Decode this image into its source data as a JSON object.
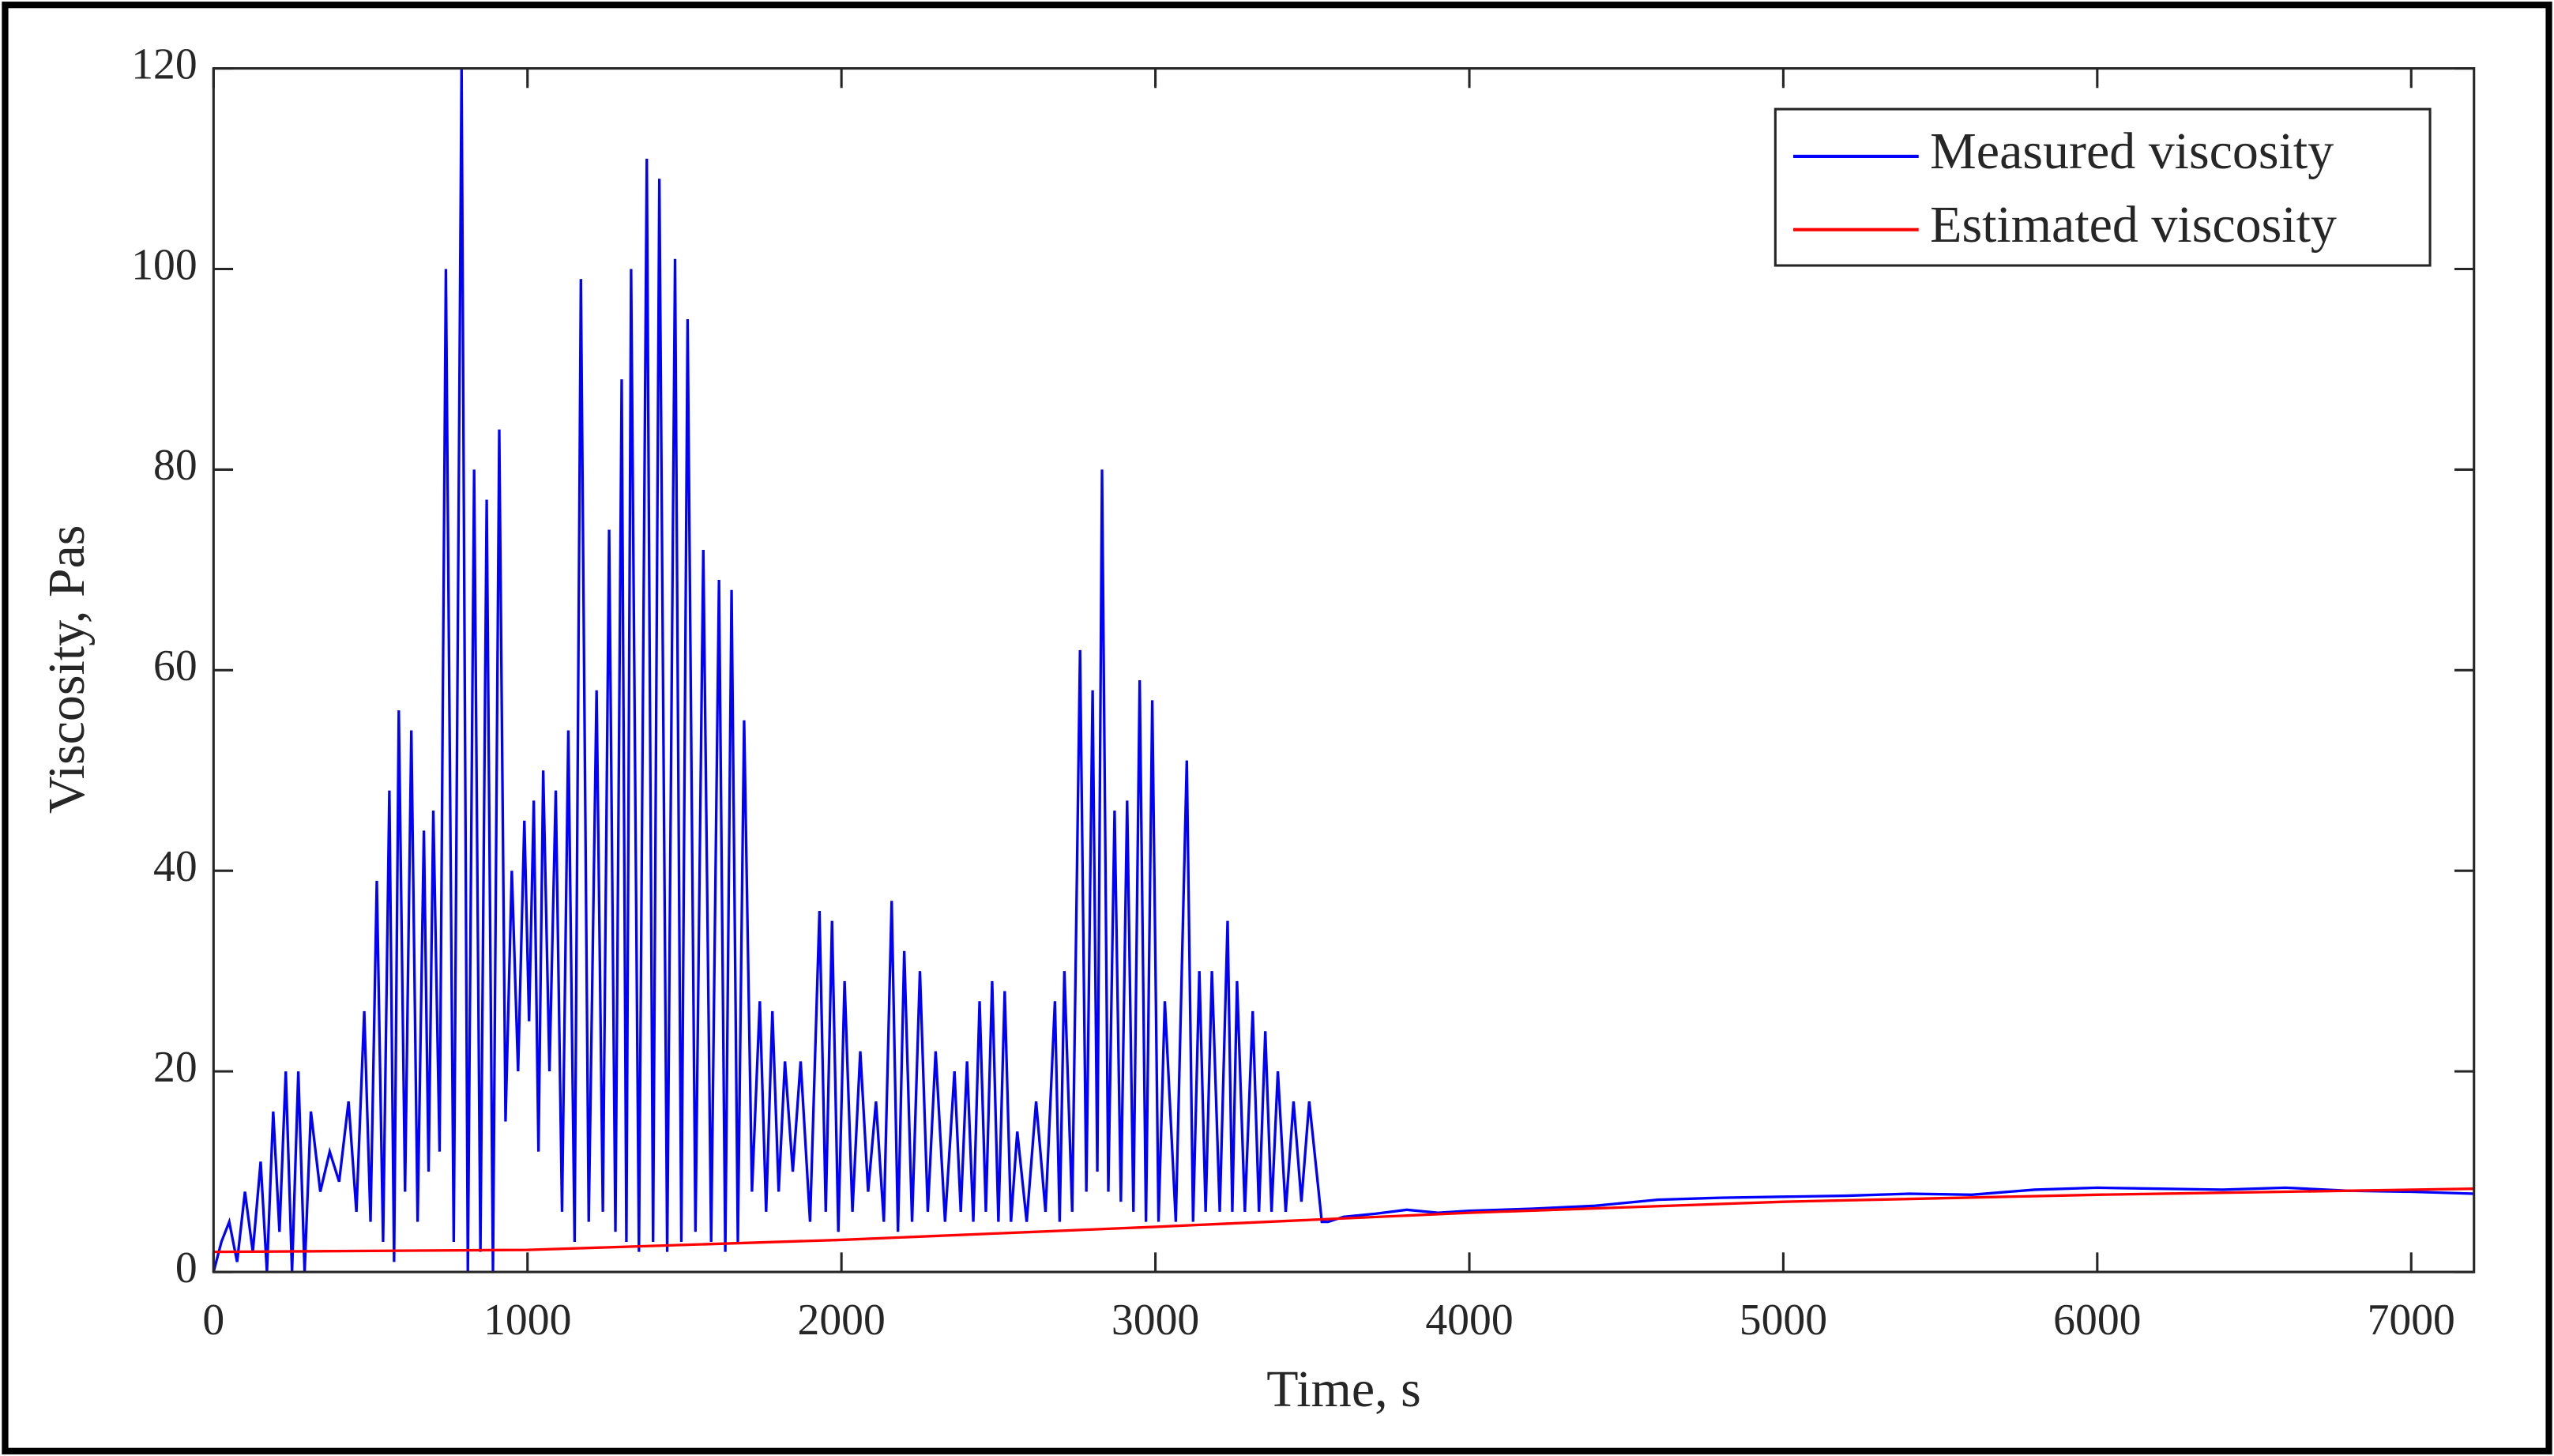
{
  "chart_data": {
    "type": "line",
    "xlabel": "Time, s",
    "ylabel": "Viscosity, Pas",
    "xlim": [
      0,
      7200
    ],
    "xticks": [
      0,
      1000,
      2000,
      3000,
      4000,
      5000,
      6000,
      7000
    ],
    "ylim": [
      0,
      120
    ],
    "yticks": [
      0,
      20,
      40,
      60,
      80,
      100,
      120
    ],
    "legend": "upper right",
    "series": [
      {
        "name": "Measured viscosity",
        "color": "#0000ff",
        "x": [
          0,
          25,
          50,
          75,
          100,
          125,
          150,
          170,
          190,
          210,
          230,
          250,
          270,
          290,
          310,
          340,
          370,
          400,
          430,
          455,
          480,
          500,
          520,
          540,
          560,
          575,
          590,
          610,
          630,
          650,
          670,
          685,
          700,
          720,
          740,
          765,
          790,
          810,
          830,
          850,
          870,
          890,
          910,
          930,
          950,
          970,
          990,
          1005,
          1020,
          1035,
          1050,
          1070,
          1090,
          1110,
          1130,
          1150,
          1170,
          1195,
          1220,
          1240,
          1260,
          1280,
          1300,
          1315,
          1330,
          1355,
          1380,
          1400,
          1420,
          1445,
          1470,
          1490,
          1510,
          1535,
          1560,
          1585,
          1610,
          1630,
          1650,
          1670,
          1690,
          1715,
          1740,
          1760,
          1780,
          1800,
          1820,
          1845,
          1870,
          1900,
          1930,
          1950,
          1970,
          1990,
          2010,
          2035,
          2060,
          2085,
          2110,
          2135,
          2160,
          2180,
          2200,
          2225,
          2250,
          2275,
          2300,
          2330,
          2360,
          2380,
          2400,
          2420,
          2440,
          2460,
          2480,
          2500,
          2520,
          2540,
          2560,
          2590,
          2620,
          2650,
          2680,
          2695,
          2710,
          2735,
          2760,
          2780,
          2800,
          2815,
          2830,
          2850,
          2870,
          2890,
          2910,
          2930,
          2950,
          2970,
          2990,
          3010,
          3030,
          3065,
          3100,
          3120,
          3140,
          3160,
          3180,
          3205,
          3230,
          3245,
          3260,
          3285,
          3310,
          3330,
          3350,
          3370,
          3390,
          3415,
          3440,
          3465,
          3490,
          3530,
          3550,
          3600,
          3700,
          3800,
          3900,
          4000,
          4200,
          4400,
          4600,
          4800,
          5000,
          5200,
          5400,
          5600,
          5800,
          6000,
          6200,
          6400,
          6600,
          6800,
          7000,
          7200
        ],
        "values": [
          0,
          3,
          5,
          1,
          8,
          2,
          11,
          0,
          16,
          4,
          20,
          0,
          20,
          0,
          16,
          8,
          12,
          9,
          17,
          6,
          26,
          5,
          39,
          3,
          48,
          1,
          56,
          8,
          54,
          5,
          44,
          10,
          46,
          12,
          100,
          3,
          120,
          0,
          80,
          2,
          77,
          0,
          84,
          15,
          40,
          20,
          45,
          25,
          47,
          12,
          50,
          20,
          48,
          6,
          54,
          3,
          99,
          5,
          58,
          6,
          74,
          4,
          89,
          3,
          100,
          2,
          111,
          3,
          109,
          2,
          101,
          3,
          95,
          4,
          72,
          3,
          69,
          2,
          68,
          3,
          55,
          8,
          27,
          6,
          26,
          8,
          21,
          10,
          21,
          5,
          36,
          6,
          35,
          4,
          29,
          6,
          22,
          8,
          17,
          5,
          37,
          4,
          32,
          5,
          30,
          6,
          22,
          5,
          20,
          6,
          21,
          5,
          27,
          6,
          29,
          5,
          28,
          5,
          14,
          5,
          17,
          6,
          27,
          5,
          30,
          6,
          62,
          8,
          58,
          10,
          80,
          8,
          46,
          7,
          47,
          6,
          59,
          5,
          57,
          5,
          27,
          5,
          51,
          5,
          30,
          6,
          30,
          6,
          35,
          6,
          29,
          6,
          26,
          6,
          24,
          6,
          20,
          6,
          17,
          7,
          17,
          5,
          5,
          5.5,
          5.8,
          6.2,
          5.9,
          6.1,
          6.3,
          6.6,
          7.2,
          7.4,
          7.5,
          7.6,
          7.8,
          7.7,
          8.2,
          8.4,
          8.3,
          8.2,
          8.4,
          8.1,
          8,
          7.8
        ]
      },
      {
        "name": "Estimated viscosity",
        "color": "#ff0000",
        "x": [
          0,
          1000,
          2000,
          3000,
          3500,
          4000,
          5000,
          6000,
          7200
        ],
        "values": [
          2,
          2.2,
          3.2,
          4.5,
          5.2,
          5.9,
          7,
          7.7,
          8.3
        ]
      }
    ]
  }
}
